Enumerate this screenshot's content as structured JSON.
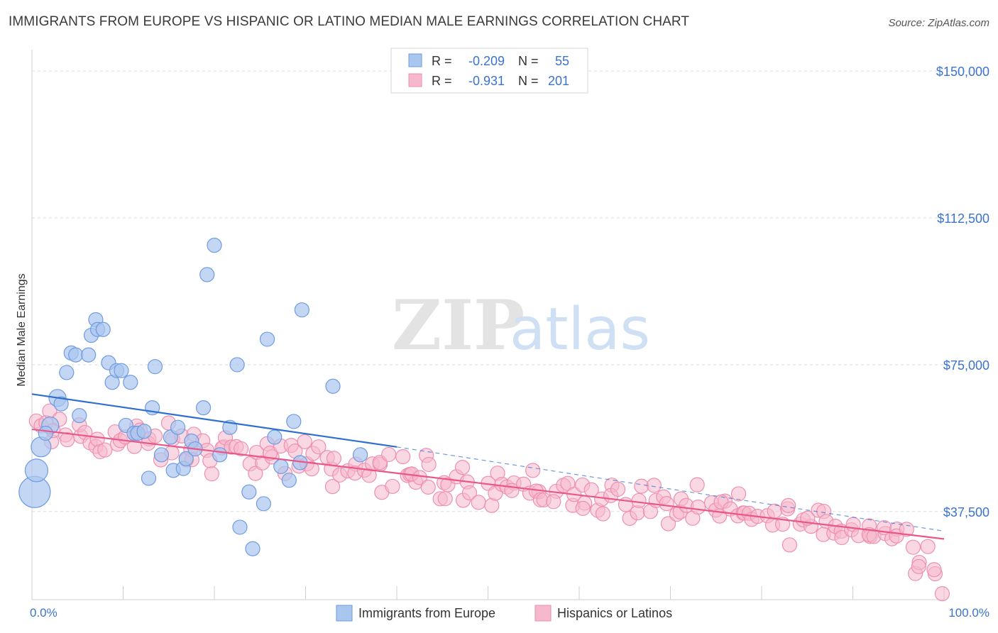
{
  "header": {
    "title": "IMMIGRANTS FROM EUROPE VS HISPANIC OR LATINO MEDIAN MALE EARNINGS CORRELATION CHART",
    "source": "Source: ZipAtlas.com"
  },
  "watermark": {
    "zip": "ZIP",
    "atlas": "atlas"
  },
  "legend_box": {
    "rows": [
      {
        "r_label": "R =",
        "r_value": "-0.209",
        "n_label": "N =",
        "n_value": "55",
        "color": "#8fb4e8"
      },
      {
        "r_label": "R =",
        "r_value": "-0.931",
        "n_label": "N =",
        "n_value": "201",
        "color": "#f4a0b9"
      }
    ]
  },
  "bottom_legend": {
    "items": [
      {
        "label": "Immigrants from Europe",
        "color": "#8fb4e8"
      },
      {
        "label": "Hispanics or Latinos",
        "color": "#f4a0b9"
      }
    ]
  },
  "colors": {
    "blue_fill": "#a9c6ef",
    "blue_stroke": "#6f9be0",
    "blue_line": "#2f6fd0",
    "pink_fill": "#f6b8cc",
    "pink_stroke": "#ee8fae",
    "pink_line": "#e8578a",
    "axis_text": "#3b73cf",
    "grid": "#dcdcdc"
  },
  "chart_data": {
    "type": "scatter",
    "title": "IMMIGRANTS FROM EUROPE VS HISPANIC OR LATINO MEDIAN MALE EARNINGS CORRELATION CHART",
    "xlabel": "",
    "ylabel": "Median Male Earnings",
    "x_tick_labels": [
      "0.0%",
      "100.0%"
    ],
    "y_tick_labels": [
      "$150,000",
      "$112,500",
      "$75,000",
      "$37,500"
    ],
    "y_ticks": [
      150000,
      112500,
      75000,
      37500
    ],
    "xlim": [
      0,
      100
    ],
    "ylim": [
      15000,
      154000
    ],
    "grid": true,
    "legend_position": "bottom",
    "series": [
      {
        "name": "Immigrants from Europe",
        "r": -0.209,
        "n": 55,
        "trend": {
          "x0": 0,
          "y0": 67500,
          "x1": 40,
          "y1": 54000,
          "dashed_to_x": 100,
          "dashed_to_y": 32500
        },
        "points": [
          [
            0.3,
            42500,
            2.2
          ],
          [
            0.5,
            48000,
            1.6
          ],
          [
            1.0,
            54000,
            1.4
          ],
          [
            2.0,
            59500,
            1.2
          ],
          [
            1.5,
            57500,
            1.0
          ],
          [
            2.8,
            66500,
            1.2
          ],
          [
            3.2,
            65000,
            1.0
          ],
          [
            3.8,
            73000,
            1.0
          ],
          [
            4.3,
            78000,
            1.0
          ],
          [
            4.8,
            77500,
            1.0
          ],
          [
            5.2,
            62000,
            1.0
          ],
          [
            6.2,
            77500,
            1.0
          ],
          [
            6.5,
            82500,
            1.0
          ],
          [
            7.0,
            86500,
            1.0
          ],
          [
            7.2,
            84000,
            1.0
          ],
          [
            7.8,
            84000,
            1.0
          ],
          [
            8.4,
            75500,
            1.0
          ],
          [
            8.8,
            70500,
            1.0
          ],
          [
            9.3,
            73500,
            1.0
          ],
          [
            9.8,
            73500,
            1.0
          ],
          [
            10.3,
            59500,
            1.0
          ],
          [
            10.8,
            70500,
            1.0
          ],
          [
            11.2,
            57500,
            1.0
          ],
          [
            11.6,
            57500,
            1.0
          ],
          [
            12.3,
            58000,
            1.0
          ],
          [
            12.8,
            46000,
            1.0
          ],
          [
            13.2,
            64000,
            1.0
          ],
          [
            13.5,
            74500,
            1.0
          ],
          [
            14.2,
            52000,
            1.0
          ],
          [
            15.2,
            56500,
            1.0
          ],
          [
            15.5,
            48000,
            1.0
          ],
          [
            16.0,
            59000,
            1.0
          ],
          [
            16.6,
            48500,
            1.0
          ],
          [
            16.9,
            51000,
            1.0
          ],
          [
            17.5,
            55500,
            1.0
          ],
          [
            17.9,
            53500,
            1.0
          ],
          [
            18.8,
            64000,
            1.0
          ],
          [
            19.2,
            98000,
            1.0
          ],
          [
            20.0,
            105500,
            1.0
          ],
          [
            20.6,
            52000,
            1.0
          ],
          [
            21.7,
            59000,
            1.0
          ],
          [
            22.5,
            75000,
            1.0
          ],
          [
            22.8,
            33500,
            1.0
          ],
          [
            23.8,
            42500,
            1.0
          ],
          [
            24.2,
            28000,
            1.0
          ],
          [
            25.4,
            39500,
            1.0
          ],
          [
            25.8,
            81500,
            1.0
          ],
          [
            26.6,
            56500,
            1.0
          ],
          [
            27.3,
            49000,
            1.0
          ],
          [
            28.2,
            45500,
            1.0
          ],
          [
            28.7,
            60500,
            1.0
          ],
          [
            29.4,
            50000,
            1.0
          ],
          [
            29.6,
            89000,
            1.0
          ],
          [
            33.0,
            69500,
            1.0
          ],
          [
            36.0,
            52000,
            1.0
          ]
        ]
      },
      {
        "name": "Hispanics or Latinos",
        "r": -0.931,
        "n": 201,
        "trend": {
          "x0": 0,
          "y0": 58500,
          "x1": 100,
          "y1": 30500
        }
      }
    ]
  }
}
